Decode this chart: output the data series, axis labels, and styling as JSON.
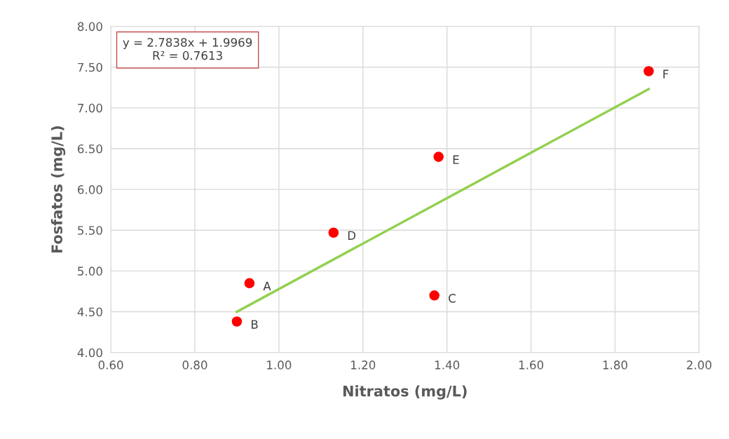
{
  "chart_data": {
    "type": "scatter",
    "xlabel": "Nitratos (mg/L)",
    "ylabel": "Fosfatos (mg/L)",
    "xlim": [
      0.6,
      2.0
    ],
    "ylim": [
      4.0,
      8.0
    ],
    "xticks": [
      {
        "value": 0.6,
        "label": "0.60"
      },
      {
        "value": 0.8,
        "label": "0.80"
      },
      {
        "value": 1.0,
        "label": "1.00"
      },
      {
        "value": 1.2,
        "label": "1.20"
      },
      {
        "value": 1.4,
        "label": "1.40"
      },
      {
        "value": 1.6,
        "label": "1.60"
      },
      {
        "value": 1.8,
        "label": "1.80"
      },
      {
        "value": 2.0,
        "label": "2.00"
      }
    ],
    "yticks": [
      {
        "value": 4.0,
        "label": "4.00"
      },
      {
        "value": 4.5,
        "label": "4.50"
      },
      {
        "value": 5.0,
        "label": "5.00"
      },
      {
        "value": 5.5,
        "label": "5.50"
      },
      {
        "value": 6.0,
        "label": "6.00"
      },
      {
        "value": 6.5,
        "label": "6.50"
      },
      {
        "value": 7.0,
        "label": "7.00"
      },
      {
        "value": 7.5,
        "label": "7.50"
      },
      {
        "value": 8.0,
        "label": "8.00"
      }
    ],
    "grid": true,
    "series": [
      {
        "marker": "circle",
        "color": "#ff0000",
        "x": [
          0.93,
          0.9,
          1.37,
          1.13,
          1.38,
          1.88
        ],
        "values": [
          4.85,
          4.38,
          4.7,
          5.47,
          6.4,
          7.45
        ]
      },
      {
        "type": "line",
        "marker": "none",
        "color": "#92d050",
        "x": [
          0.9,
          1.88
        ],
        "values": [
          4.5,
          7.23
        ]
      }
    ],
    "annotations": [
      {
        "text": "A",
        "x": 0.93,
        "y": 4.85
      },
      {
        "text": "B",
        "x": 0.9,
        "y": 4.38
      },
      {
        "text": "C",
        "x": 1.37,
        "y": 4.7
      },
      {
        "text": "D",
        "x": 1.13,
        "y": 5.47
      },
      {
        "text": "E",
        "x": 1.38,
        "y": 6.4
      },
      {
        "text": "F",
        "x": 1.88,
        "y": 7.45
      },
      "y = 2.7838x + 1.9969\nR² = 0.7613"
    ]
  }
}
